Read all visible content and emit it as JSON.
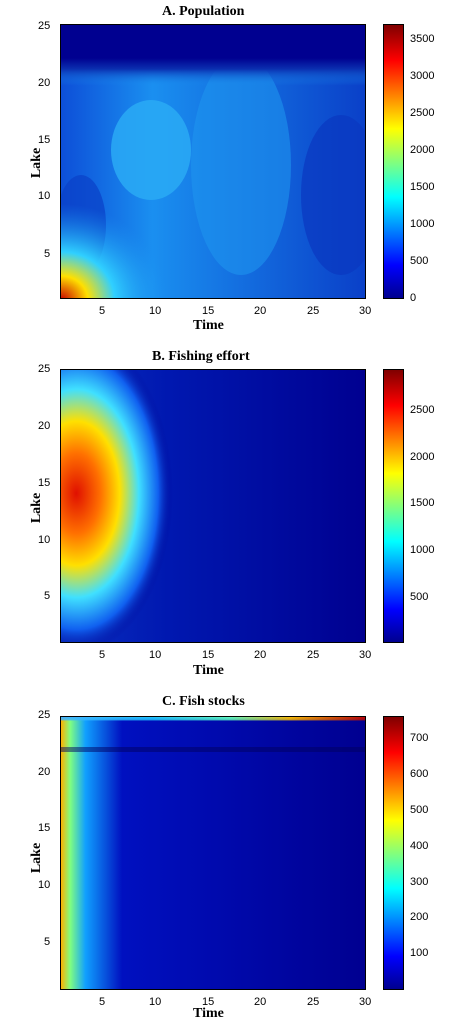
{
  "chart_data": [
    {
      "type": "heatmap",
      "title": "A. Population",
      "xlabel": "Time",
      "ylabel": "Lake",
      "xlim": [
        1,
        30
      ],
      "ylim": [
        1,
        25
      ],
      "xticks": [
        "5",
        "10",
        "15",
        "20",
        "25",
        "30"
      ],
      "yticks": [
        "5",
        "10",
        "15",
        "20",
        "25"
      ],
      "colorbar_ticks": [
        "0",
        "500",
        "1000",
        "1500",
        "2000",
        "2500",
        "3000",
        "3500"
      ],
      "colorbar_range": [
        0,
        3700
      ],
      "colors": {
        "low": "#00008f",
        "mid": "#00c0ff",
        "high": "#800000"
      }
    },
    {
      "type": "heatmap",
      "title": "B. Fishing effort",
      "xlabel": "Time",
      "ylabel": "Lake",
      "xlim": [
        1,
        30
      ],
      "ylim": [
        1,
        25
      ],
      "xticks": [
        "5",
        "10",
        "15",
        "20",
        "25",
        "30"
      ],
      "yticks": [
        "5",
        "10",
        "15",
        "20",
        "25"
      ],
      "colorbar_ticks": [
        "500",
        "1000",
        "1500",
        "2000",
        "2500"
      ],
      "colorbar_range": [
        0,
        2900
      ],
      "colors": {
        "low": "#00008f",
        "mid": "#00c0ff",
        "high": "#800000"
      }
    },
    {
      "type": "heatmap",
      "title": "C. Fish stocks",
      "xlabel": "Time",
      "ylabel": "Lake",
      "xlim": [
        1,
        30
      ],
      "ylim": [
        1,
        25
      ],
      "xticks": [
        "5",
        "10",
        "15",
        "20",
        "25",
        "30"
      ],
      "yticks": [
        "5",
        "10",
        "15",
        "20",
        "25"
      ],
      "colorbar_ticks": [
        "100",
        "200",
        "300",
        "400",
        "500",
        "600",
        "700"
      ],
      "colorbar_range": [
        0,
        760
      ],
      "colors": {
        "low": "#00008f",
        "mid": "#00c0ff",
        "high": "#800000"
      }
    }
  ]
}
